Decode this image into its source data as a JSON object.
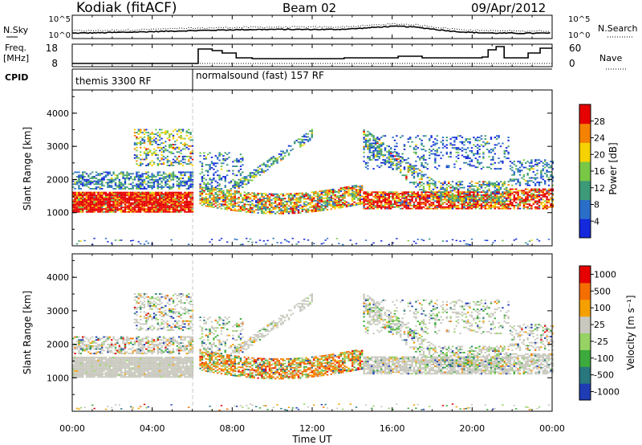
{
  "header": {
    "station": "Kodiak (fitACF)",
    "beam": "Beam 02",
    "date": "09/Apr/2012"
  },
  "panels": {
    "noise_left_label": "N.Sky",
    "noise_right_label": "N.Search",
    "freq_left_label_1": "Freq.",
    "freq_left_label_2": "[MHz]",
    "freq_right_label": "Nave",
    "cpid_label": "CPID",
    "noise_ticks_left": [
      "10^5",
      "10^0"
    ],
    "noise_ticks_right": [
      "10^5",
      "10^0"
    ],
    "freq_ticks_left": [
      "18",
      "8"
    ],
    "freq_ticks_right": [
      "60",
      "0"
    ],
    "cpid_segments": [
      {
        "label": "themis 3300 RF",
        "start_hour": 0,
        "end_hour": 6
      },
      {
        "label": "normalsound (fast) 157 RF",
        "start_hour": 6,
        "end_hour": 24
      }
    ]
  },
  "colorbars": {
    "power": {
      "label": "Power [dB]",
      "ticks": [
        "4",
        "8",
        "12",
        "16",
        "20",
        "24",
        "28"
      ],
      "colors": [
        "#1428dc",
        "#2a6ec8",
        "#3c9a78",
        "#78c846",
        "#f5d200",
        "#f58200",
        "#e60000"
      ]
    },
    "velocity": {
      "label": "Velocity  [m s⁻¹]",
      "ticks": [
        "1000",
        "500",
        "100",
        "25",
        "-25",
        "-100",
        "-500",
        "-1000"
      ],
      "colors": [
        "#1e3cb4",
        "#28787e",
        "#3caa3c",
        "#96d264",
        "#c8c8be",
        "#f5a000",
        "#f56e00",
        "#e60000"
      ]
    }
  },
  "chart_data": [
    {
      "type": "heatmap",
      "name": "power",
      "ylabel": "Slant Range [km]",
      "xlim": [
        0,
        24
      ],
      "ylim": [
        0,
        4700
      ],
      "yticks": [
        "1000",
        "2000",
        "3000",
        "4000"
      ],
      "colorbar_range": [
        0,
        32
      ],
      "colorbar_label": "Power [dB]"
    },
    {
      "type": "heatmap",
      "name": "velocity",
      "ylabel": "Slant Range [km]",
      "xlabel": "Time UT",
      "xlim": [
        0,
        24
      ],
      "ylim": [
        0,
        4700
      ],
      "xticks": [
        "00:00",
        "04:00",
        "08:00",
        "12:00",
        "16:00",
        "20:00",
        "00:00"
      ],
      "yticks": [
        "1000",
        "2000",
        "3000",
        "4000"
      ],
      "colorbar_label": "Velocity [m s^-1]"
    }
  ]
}
